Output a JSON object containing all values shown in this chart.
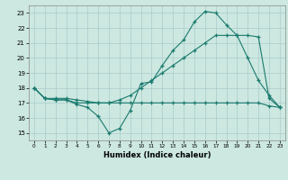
{
  "title": "",
  "xlabel": "Humidex (Indice chaleur)",
  "bg_color": "#cce8e0",
  "grid_color": "#aacccc",
  "line_color": "#1a7a6e",
  "xlim": [
    -0.5,
    23.5
  ],
  "ylim": [
    14.5,
    23.5
  ],
  "xticks": [
    0,
    1,
    2,
    3,
    4,
    5,
    6,
    7,
    8,
    9,
    10,
    11,
    12,
    13,
    14,
    15,
    16,
    17,
    18,
    19,
    20,
    21,
    22,
    23
  ],
  "yticks": [
    15,
    16,
    17,
    18,
    19,
    20,
    21,
    22,
    23
  ],
  "series1_x": [
    0,
    1,
    2,
    3,
    4,
    5,
    6,
    7,
    8,
    9,
    10,
    11,
    12,
    13,
    14,
    15,
    16,
    17,
    18,
    19,
    20,
    21,
    22,
    23
  ],
  "series1_y": [
    18,
    17.3,
    17.2,
    17.2,
    16.9,
    16.7,
    16.1,
    15.0,
    15.3,
    16.5,
    18.3,
    18.4,
    19.5,
    20.5,
    21.2,
    22.4,
    23.1,
    23.0,
    22.2,
    21.5,
    20.0,
    18.5,
    17.5,
    16.7
  ],
  "series2_x": [
    0,
    1,
    2,
    3,
    4,
    5,
    6,
    7,
    8,
    9,
    10,
    11,
    12,
    13,
    14,
    15,
    16,
    17,
    18,
    19,
    20,
    21,
    22,
    23
  ],
  "series2_y": [
    18,
    17.3,
    17.2,
    17.2,
    17.0,
    17.0,
    17.0,
    17.0,
    17.0,
    17.0,
    17.0,
    17.0,
    17.0,
    17.0,
    17.0,
    17.0,
    17.0,
    17.0,
    17.0,
    17.0,
    17.0,
    17.0,
    16.8,
    16.7
  ],
  "series3_x": [
    0,
    1,
    2,
    3,
    4,
    5,
    6,
    7,
    8,
    9,
    10,
    11,
    12,
    13,
    14,
    15,
    16,
    17,
    18,
    19,
    20,
    21,
    22,
    23
  ],
  "series3_y": [
    18,
    17.3,
    17.3,
    17.3,
    17.2,
    17.1,
    17.0,
    17.0,
    17.2,
    17.5,
    18.0,
    18.5,
    19.0,
    19.5,
    20.0,
    20.5,
    21.0,
    21.5,
    21.5,
    21.5,
    21.5,
    21.4,
    17.3,
    16.7
  ]
}
